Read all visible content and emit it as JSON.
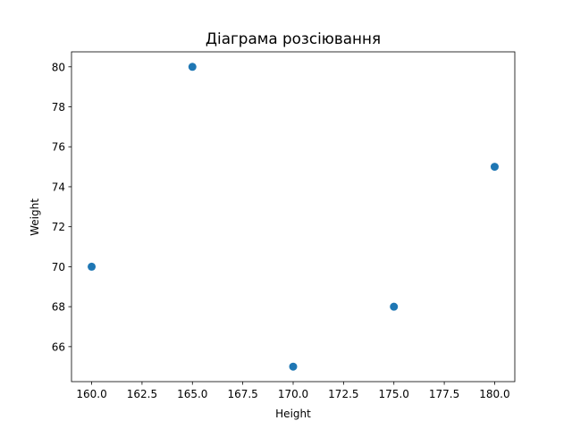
{
  "chart_data": {
    "type": "scatter",
    "title": "Діаграма розсіювання",
    "xlabel": "Height",
    "ylabel": "Weight",
    "x": [
      160,
      165,
      170,
      175,
      180
    ],
    "y": [
      70,
      80,
      65,
      68,
      75
    ],
    "xlim": [
      159.0,
      181.0
    ],
    "ylim": [
      64.25,
      80.75
    ],
    "xticks": [
      160.0,
      162.5,
      165.0,
      167.5,
      170.0,
      172.5,
      175.0,
      177.5,
      180.0
    ],
    "xtick_labels": [
      "160.0",
      "162.5",
      "165.0",
      "167.5",
      "170.0",
      "172.5",
      "175.0",
      "177.5",
      "180.0"
    ],
    "yticks": [
      66,
      68,
      70,
      72,
      74,
      76,
      78,
      80
    ],
    "ytick_labels": [
      "66",
      "68",
      "70",
      "72",
      "74",
      "76",
      "78",
      "80"
    ],
    "grid": false,
    "marker_color": "#1f77b4"
  }
}
